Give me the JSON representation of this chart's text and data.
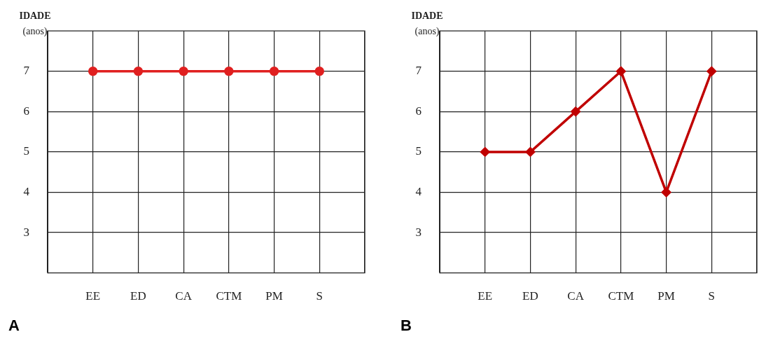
{
  "chart_data": [
    {
      "type": "line",
      "ylabel": "IDADE (anos)",
      "annotations": [
        "A"
      ],
      "categories": [
        null,
        "EE",
        "ED",
        "CA",
        "CTM",
        "PM",
        "S",
        null
      ],
      "series": [
        {
          "color": "#e02020",
          "values": [
            null,
            7,
            7,
            7,
            7,
            7,
            7,
            null
          ]
        }
      ],
      "ylim": [
        2,
        8
      ],
      "yticks": [
        3,
        4,
        5,
        6,
        7
      ],
      "grid": true,
      "legend": false,
      "marker": "circle",
      "line_style": "solid"
    },
    {
      "type": "line",
      "ylabel": "IDADE (anos)",
      "annotations": [
        "B"
      ],
      "categories": [
        null,
        "EE",
        "ED",
        "CA",
        "CTM",
        "PM",
        "S",
        null
      ],
      "series": [
        {
          "color": "#c00000",
          "values": [
            null,
            5,
            5,
            6,
            7,
            4,
            7,
            null
          ]
        }
      ],
      "ylim": [
        2,
        8
      ],
      "yticks": [
        3,
        4,
        5,
        6,
        7
      ],
      "grid": true,
      "legend": false,
      "marker": "diamond",
      "line_style": "solid"
    }
  ]
}
